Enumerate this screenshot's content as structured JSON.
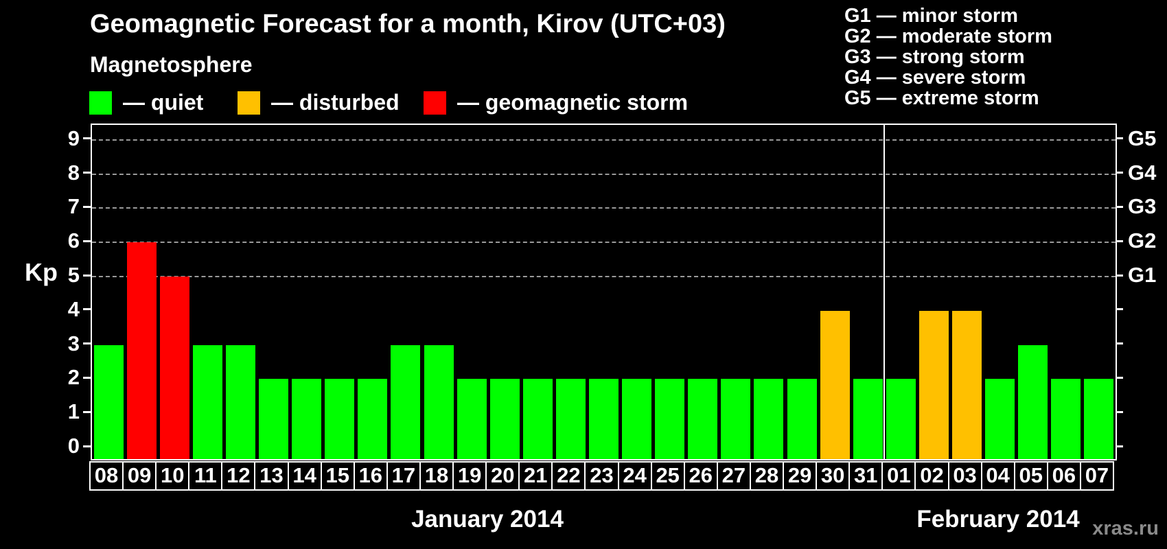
{
  "title": "Geomagnetic Forecast for a month, Kirov (UTC+03)",
  "legend": {
    "heading": "Magnetosphere",
    "items": [
      {
        "key": "quiet",
        "label": "— quiet",
        "color": "#00ff00"
      },
      {
        "key": "disturbed",
        "label": "— disturbed",
        "color": "#ffc000"
      },
      {
        "key": "storm",
        "label": "— geomagnetic storm",
        "color": "#ff0000"
      }
    ]
  },
  "g_scale_legend": [
    "G1 — minor storm",
    "G2 — moderate storm",
    "G3 — strong storm",
    "G4 — severe storm",
    "G5 — extreme storm"
  ],
  "watermark": "xras.ru",
  "chart_data": {
    "type": "bar",
    "title": "Geomagnetic Forecast for a month, Kirov (UTC+03)",
    "subtitle": "Magnetosphere",
    "ylabel": "Kp",
    "ylim": [
      0,
      9
    ],
    "yticks": [
      0,
      1,
      2,
      3,
      4,
      5,
      6,
      7,
      8,
      9
    ],
    "gridlines_at": [
      5,
      6,
      7,
      8,
      9
    ],
    "grid": "dashed",
    "right_axis": [
      {
        "kp": 5,
        "label": "G1"
      },
      {
        "kp": 6,
        "label": "G2"
      },
      {
        "kp": 7,
        "label": "G3"
      },
      {
        "kp": 8,
        "label": "G4"
      },
      {
        "kp": 9,
        "label": "G5"
      }
    ],
    "months": [
      {
        "label": "January 2014",
        "days": 24
      },
      {
        "label": "February 2014",
        "days": 7
      }
    ],
    "categories": [
      "08",
      "09",
      "10",
      "11",
      "12",
      "13",
      "14",
      "15",
      "16",
      "17",
      "18",
      "19",
      "20",
      "21",
      "22",
      "23",
      "24",
      "25",
      "26",
      "27",
      "28",
      "29",
      "30",
      "31",
      "01",
      "02",
      "03",
      "04",
      "05",
      "06",
      "07"
    ],
    "values": [
      3,
      6,
      5,
      3,
      3,
      2,
      2,
      2,
      2,
      3,
      3,
      2,
      2,
      2,
      2,
      2,
      2,
      2,
      2,
      2,
      2,
      2,
      4,
      2,
      2,
      4,
      4,
      2,
      3,
      2,
      2
    ],
    "statuses": [
      "quiet",
      "storm",
      "storm",
      "quiet",
      "quiet",
      "quiet",
      "quiet",
      "quiet",
      "quiet",
      "quiet",
      "quiet",
      "quiet",
      "quiet",
      "quiet",
      "quiet",
      "quiet",
      "quiet",
      "quiet",
      "quiet",
      "quiet",
      "quiet",
      "quiet",
      "disturbed",
      "quiet",
      "quiet",
      "disturbed",
      "disturbed",
      "quiet",
      "quiet",
      "quiet",
      "quiet"
    ]
  },
  "colors": {
    "background": "#000000",
    "foreground": "#ffffff",
    "gridline": "#9a9a9a",
    "watermark": "#8a8a8a",
    "status": {
      "quiet": "#00ff00",
      "disturbed": "#ffc000",
      "storm": "#ff0000"
    }
  }
}
